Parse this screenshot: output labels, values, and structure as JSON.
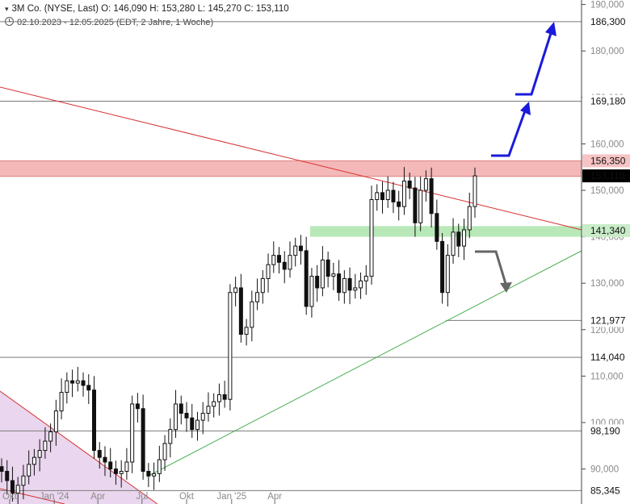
{
  "header": {
    "line1_prefix": "▾",
    "line1": "3M Co. (NYSE, Last)  O: 146,090  H: 153,280  L: 145,270  C: 153,110",
    "line2": "02.10.2023 - 12.05.2025   (EDT, 2 Jahre, 1 Woche)"
  },
  "chart_data": {
    "type": "candlestick",
    "instrument": "3M Co. (NYSE, Last)",
    "last_bar": {
      "open": 146.09,
      "high": 153.28,
      "low": 145.27,
      "close": 153.11
    },
    "period": "02.10.2023 - 12.05.2025",
    "ylim": [
      83000,
      192000
    ],
    "y_ticks": [
      "90,000",
      "100,000",
      "110,000",
      "120,000",
      "130,000",
      "140,000",
      "150,000",
      "160,000",
      "170,000",
      "180,000",
      "190,000"
    ],
    "y_tick_values": [
      90000,
      100000,
      110000,
      120000,
      130000,
      140000,
      150000,
      160000,
      170000,
      180000,
      190000
    ],
    "x_ticks": [
      {
        "label": "Okt",
        "date": "2023-10-02"
      },
      {
        "label": "Jan '24",
        "date": "2024-01-02"
      },
      {
        "label": "Apr",
        "date": "2024-04-01"
      },
      {
        "label": "Jul",
        "date": "2024-07-01"
      },
      {
        "label": "Okt",
        "date": "2024-10-01"
      },
      {
        "label": "Jan '25",
        "date": "2025-01-02"
      },
      {
        "label": "Apr",
        "date": "2025-04-01"
      }
    ],
    "horizontal_levels": [
      {
        "value": 186300,
        "label": "186,300"
      },
      {
        "value": 169180,
        "label": "169,180"
      },
      {
        "value": 156350,
        "label": "156,350"
      },
      {
        "value": 141340,
        "label": "141,340"
      },
      {
        "value": 121977,
        "label": "121,977"
      },
      {
        "value": 114040,
        "label": "114,040"
      },
      {
        "value": 98190,
        "label": "98,190"
      },
      {
        "value": 85345,
        "label": "85,345"
      }
    ],
    "last_price_label": {
      "value": 153110,
      "label": "153,110"
    },
    "resistance_zone": [
      153000,
      156350
    ],
    "support_zone": [
      140000,
      142300
    ],
    "weekly_closes": [
      89.5,
      87.5,
      84.8,
      86.5,
      88.5,
      91.0,
      92.5,
      94.0,
      96.0,
      98.0,
      102.5,
      106.5,
      109.0,
      108.5,
      109.0,
      108.0,
      107.0,
      94.0,
      92.5,
      91.5,
      90.0,
      89.0,
      89.5,
      91.5,
      104.0,
      103.0,
      89.5,
      88.5,
      89.0,
      92.0,
      95.5,
      98.5,
      104.0,
      102.0,
      101.0,
      98.5,
      100.5,
      102.0,
      103.5,
      104.5,
      106.0,
      105.0,
      128.0,
      129.0,
      119.0,
      120.5,
      126.0,
      128.0,
      131.0,
      134.0,
      136.0,
      134.5,
      133.0,
      136.0,
      138.0,
      137.0,
      125.0,
      131.5,
      129.0,
      135.0,
      131.5,
      132.0,
      128.0,
      131.0,
      128.5,
      129.0,
      130.5,
      131.5,
      148.0,
      149.5,
      148.0,
      150.0,
      147.5,
      146.5,
      152.0,
      150.5,
      143.0,
      150.0,
      152.5,
      145.0,
      139.0,
      128.0,
      136.0,
      141.0,
      138.0,
      141.5,
      146.5,
      153.11
    ]
  },
  "colors": {
    "resistance_zone": "#f4b8b8",
    "support_zone": "#b8e8b8",
    "red_trendline": "#d83030",
    "green_trendline": "#4caf50",
    "projection_arrow": "#1a1adc",
    "down_arrow": "#666666",
    "purple_fill": "#ead6ee",
    "level_line": "#7a7a7a"
  }
}
